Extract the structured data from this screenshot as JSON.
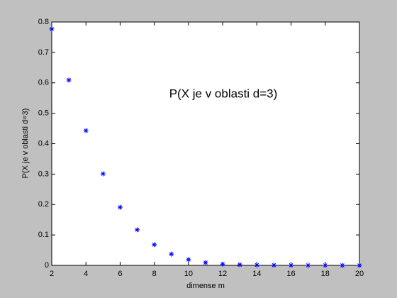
{
  "chart_data": {
    "type": "scatter",
    "annotation": "P(X je v oblasti d=3)",
    "x_label": "dimense m",
    "y_label": "P(X je v oblasti d=3)",
    "x": [
      2,
      3,
      4,
      5,
      6,
      7,
      8,
      9,
      10,
      11,
      12,
      13,
      14,
      15,
      16,
      17,
      18,
      19,
      20
    ],
    "values": [
      0.777,
      0.609,
      0.443,
      0.301,
      0.191,
      0.117,
      0.068,
      0.037,
      0.019,
      0.009,
      0.004,
      0.002,
      0.001,
      0.0005,
      0.0002,
      0.0001,
      0.0001,
      0,
      0
    ],
    "color": "#0000ff",
    "xlim": [
      2,
      20
    ],
    "xticks": [
      2,
      4,
      6,
      8,
      10,
      12,
      14,
      16,
      18,
      20
    ],
    "ylim": [
      0,
      0.8
    ],
    "yticks": [
      0,
      0.1,
      0.2,
      0.3,
      0.4,
      0.5,
      0.6,
      0.7,
      0.8
    ],
    "grid": false
  }
}
